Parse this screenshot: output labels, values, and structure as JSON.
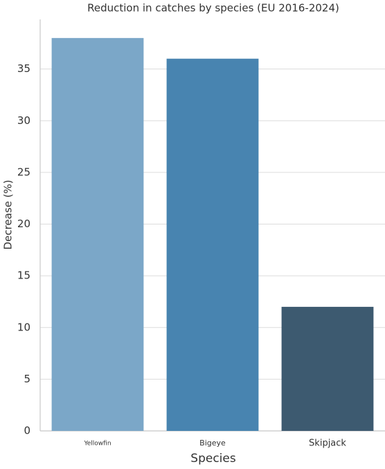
{
  "chart_data": {
    "type": "bar",
    "title": "Reduction in catches by species (EU 2016-2024)",
    "x_label": "Species",
    "y_label": "Decrease (%)",
    "categories": [
      "Yellowfin",
      "Bigeye",
      "Skipjack"
    ],
    "values": [
      38,
      36,
      12
    ],
    "colors": [
      "#7ba7c8",
      "#4884b0",
      "#3d5a70"
    ],
    "ylim": [
      0,
      39.8
    ],
    "yticks": [
      0,
      5,
      10,
      15,
      20,
      25,
      30,
      35
    ],
    "grid": true
  }
}
